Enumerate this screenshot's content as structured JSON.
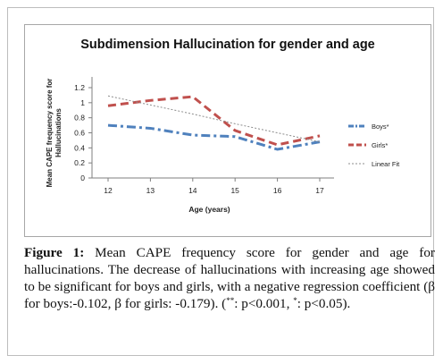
{
  "chart_data": {
    "type": "line",
    "title": "Subdimension Hallucination for gender and age",
    "xlabel": "Age (years)",
    "ylabel_line1": "Mean CAPE frequency score for",
    "ylabel_line2": "Hallucinations",
    "x": [
      12,
      13,
      14,
      15,
      16,
      17
    ],
    "x_ticks": [
      "12",
      "13",
      "14",
      "15",
      "16",
      "17"
    ],
    "ylim": [
      0,
      1.2
    ],
    "y_ticks": [
      "0",
      "0.2",
      "0.4",
      "0.6",
      "0.8",
      "1",
      "1.2"
    ],
    "grid": false,
    "legend_position": "right",
    "series": [
      {
        "name": "Boys*",
        "values": [
          0.7,
          0.66,
          0.57,
          0.55,
          0.38,
          0.48
        ],
        "color": "#4f81bd",
        "style": "dash-dot"
      },
      {
        "name": "Girls*",
        "values": [
          0.96,
          1.03,
          1.08,
          0.63,
          0.44,
          0.56
        ],
        "color": "#c0504d",
        "style": "dash"
      },
      {
        "name": "Linear Fit",
        "values": [
          1.09,
          0.97,
          0.85,
          0.72,
          0.6,
          0.48
        ],
        "color": "#8c8c8c",
        "style": "dotted"
      }
    ]
  },
  "caption": {
    "label": "Figure 1:",
    "text_a": " Mean CAPE frequency score for gender and age for hallucinations. The decrease of hallucinations with increasing age showed to be significant for boys and girls, with a negative regression coefficient (β for boys:-0.102, β for girls: -0.179). (",
    "sup1": "**",
    "text_b": ": p<0.001, ",
    "sup2": "*",
    "text_c": ": p<0.05)."
  }
}
